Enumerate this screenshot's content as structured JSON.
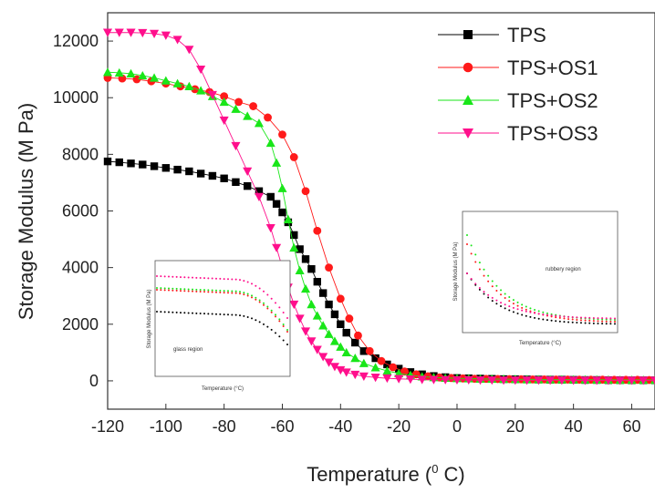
{
  "chart_data": {
    "type": "scatter",
    "xlabel_prefix": "Temperature (",
    "xlabel_sup": "0",
    "xlabel_suffix": " C)",
    "ylabel": "Storage Modulus (M Pa)",
    "xlim": [
      -120,
      68
    ],
    "ylim": [
      -1000,
      13000
    ],
    "xticks": [
      -120,
      -100,
      -80,
      -60,
      -40,
      -20,
      0,
      20,
      40,
      60
    ],
    "yticks": [
      0,
      2000,
      4000,
      6000,
      8000,
      10000,
      12000
    ],
    "legend_position": "top-right",
    "series": [
      {
        "name": "TPS",
        "color": "#000000",
        "marker": "square",
        "x": [
          -120,
          -116,
          -112,
          -108,
          -104,
          -100,
          -96,
          -92,
          -88,
          -84,
          -80,
          -76,
          -72,
          -68,
          -64,
          -62,
          -60,
          -58,
          -56,
          -54,
          -52,
          -50,
          -48,
          -46,
          -44,
          -42,
          -40,
          -38,
          -35,
          -32,
          -28,
          -24,
          -20,
          -16,
          -12,
          -8,
          -4,
          0,
          4,
          8,
          12,
          16,
          20,
          24,
          28,
          32,
          36,
          40,
          44,
          48,
          52,
          56,
          60,
          64,
          68
        ],
        "y": [
          7750,
          7720,
          7680,
          7640,
          7580,
          7520,
          7460,
          7400,
          7320,
          7240,
          7150,
          7020,
          6880,
          6700,
          6500,
          6250,
          5950,
          5600,
          5150,
          4650,
          4300,
          3950,
          3500,
          3100,
          2700,
          2350,
          2000,
          1700,
          1350,
          1050,
          800,
          580,
          430,
          310,
          230,
          170,
          130,
          100,
          90,
          80,
          70,
          60,
          55,
          50,
          45,
          40,
          40,
          35,
          30,
          30,
          25,
          25,
          20,
          20,
          20
        ]
      },
      {
        "name": "TPS+OS1",
        "color": "#ff1a1a",
        "marker": "circle",
        "x": [
          -120,
          -115,
          -110,
          -105,
          -100,
          -95,
          -90,
          -85,
          -80,
          -75,
          -70,
          -65,
          -60,
          -56,
          -52,
          -48,
          -44,
          -40,
          -37,
          -34,
          -30,
          -26,
          -22,
          -18,
          -14,
          -10,
          -6,
          -2,
          2,
          6,
          10,
          14,
          18,
          22,
          26,
          30,
          34,
          38,
          42,
          46,
          50,
          54,
          58,
          62,
          66
        ],
        "y": [
          10700,
          10680,
          10650,
          10580,
          10500,
          10400,
          10300,
          10200,
          10050,
          9850,
          9700,
          9300,
          8700,
          7900,
          6700,
          5300,
          4000,
          2900,
          2200,
          1600,
          1050,
          700,
          480,
          330,
          230,
          160,
          120,
          100,
          85,
          75,
          70,
          65,
          60,
          55,
          50,
          50,
          45,
          45,
          40,
          40,
          40,
          35,
          35,
          35,
          30
        ]
      },
      {
        "name": "TPS+OS2",
        "color": "#19e619",
        "marker": "triangle-up",
        "x": [
          -120,
          -116,
          -112,
          -108,
          -104,
          -100,
          -96,
          -92,
          -88,
          -84,
          -80,
          -76,
          -72,
          -68,
          -64,
          -62,
          -60,
          -58,
          -56,
          -54,
          -52,
          -50,
          -48,
          -46,
          -44,
          -42,
          -40,
          -38,
          -35,
          -32,
          -28,
          -24,
          -20,
          -16,
          -12,
          -8,
          -4,
          0,
          4,
          8,
          12,
          16,
          20,
          24,
          28,
          32,
          36,
          40,
          44,
          48,
          52,
          56,
          60,
          64,
          68
        ],
        "y": [
          10900,
          10880,
          10850,
          10780,
          10700,
          10600,
          10500,
          10400,
          10250,
          10050,
          9850,
          9600,
          9350,
          9100,
          8400,
          7700,
          6800,
          5700,
          4700,
          3900,
          3250,
          2700,
          2300,
          1950,
          1650,
          1400,
          1200,
          1000,
          800,
          620,
          470,
          350,
          260,
          200,
          150,
          120,
          100,
          90,
          80,
          70,
          65,
          60,
          55,
          50,
          50,
          45,
          45,
          40,
          40,
          35,
          35,
          30,
          30,
          30,
          30
        ]
      },
      {
        "name": "TPS+OS3",
        "color": "#ff0f8c",
        "marker": "triangle-down",
        "x": [
          -120,
          -116,
          -112,
          -108,
          -104,
          -100,
          -96,
          -92,
          -88,
          -84,
          -80,
          -76,
          -72,
          -68,
          -64,
          -62,
          -60,
          -58,
          -56,
          -54,
          -52,
          -50,
          -48,
          -46,
          -44,
          -42,
          -40,
          -38,
          -35,
          -32,
          -28,
          -24,
          -20,
          -16,
          -12,
          -8,
          -4,
          0,
          4,
          8,
          12,
          16,
          20,
          24,
          28,
          32,
          36,
          40,
          44,
          48,
          52,
          56,
          60,
          64,
          68
        ],
        "y": [
          12300,
          12300,
          12300,
          12290,
          12260,
          12200,
          12050,
          11700,
          11000,
          10100,
          9200,
          8300,
          7400,
          6500,
          5400,
          4700,
          4000,
          3300,
          2700,
          2200,
          1750,
          1400,
          1100,
          850,
          650,
          500,
          380,
          300,
          220,
          160,
          120,
          90,
          70,
          55,
          45,
          40,
          35,
          30,
          30,
          25,
          25,
          20,
          20,
          20,
          20,
          20,
          20,
          15,
          15,
          15,
          15,
          15,
          15,
          15,
          15
        ]
      }
    ]
  },
  "inset_glass": {
    "region_label": "glass region",
    "ylabel": "Storage Modulus (M Pa)",
    "xlabel": "Temperature (°C)"
  },
  "inset_rubbery": {
    "region_label": "rubbery region",
    "ylabel": "Storage Modulus (M Pa)",
    "xlabel": "Temperature (°C)"
  }
}
